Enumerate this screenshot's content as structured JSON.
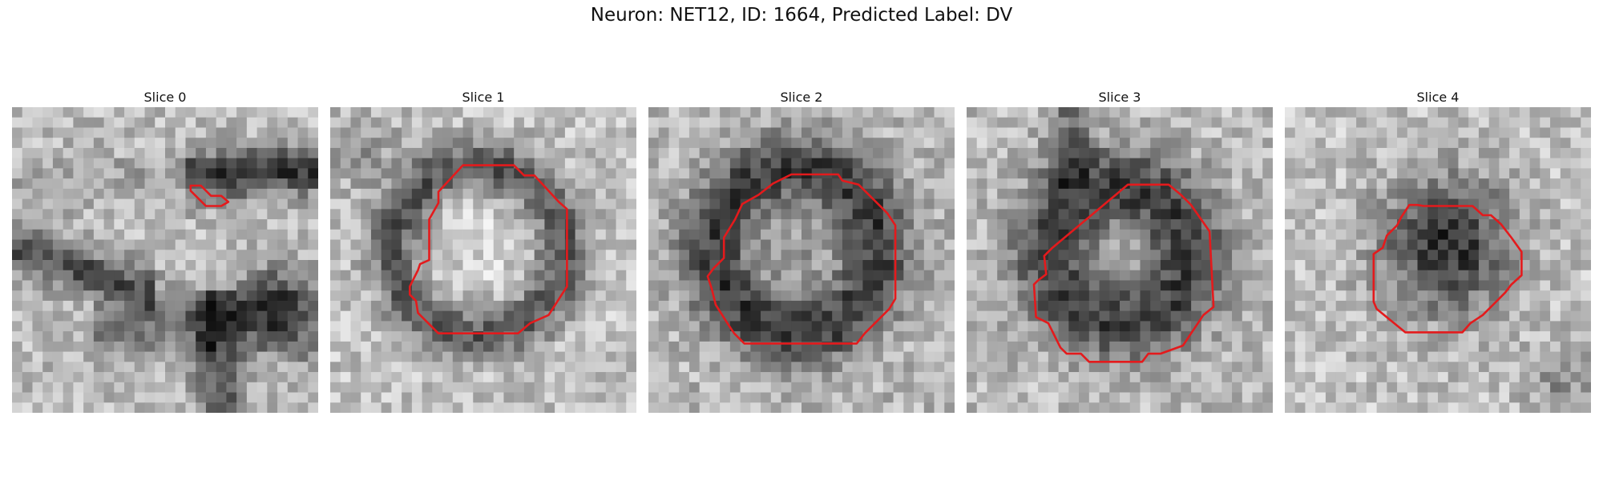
{
  "figure": {
    "title": "Neuron: NET12, ID: 1664, Predicted Label: DV"
  },
  "contour_color": "#e41a1c",
  "panels": [
    {
      "title": "Slice 0"
    },
    {
      "title": "Slice 1"
    },
    {
      "title": "Slice 2"
    },
    {
      "title": "Slice 3"
    },
    {
      "title": "Slice 4"
    }
  ]
}
